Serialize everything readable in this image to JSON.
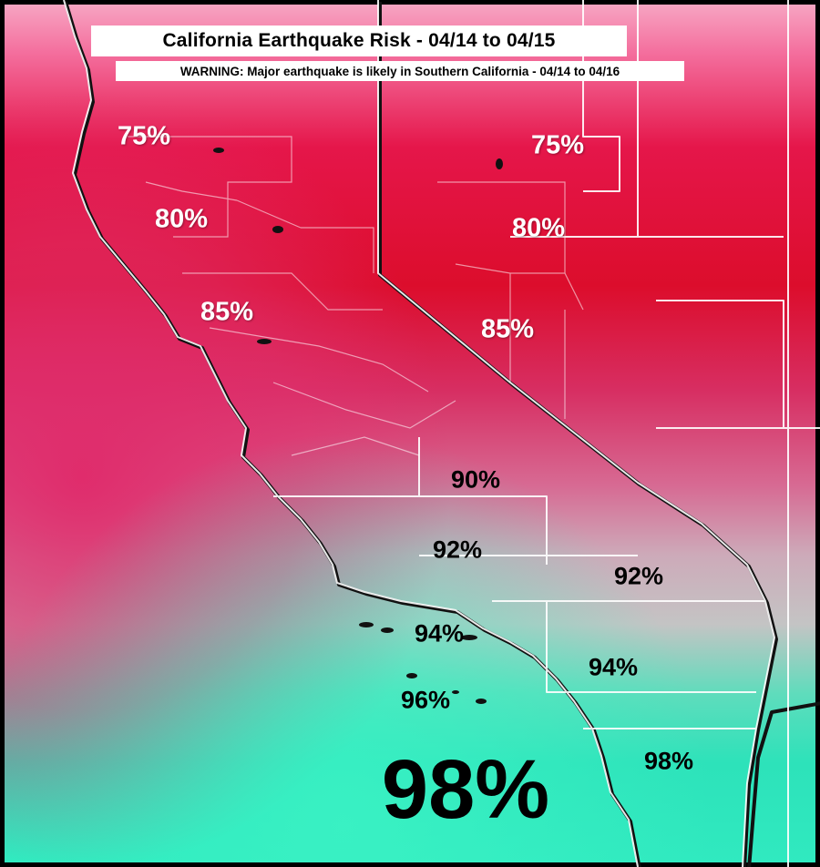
{
  "map": {
    "title": "California Earthquake Risk - 04/14 to 04/15",
    "warning": "WARNING: Major earthquake is likely in Southern California - 04/14 to 04/16",
    "colors": {
      "high_pink": "#f46f9e",
      "red": "#e0102a",
      "magenta": "#d8306a",
      "gray": "#c6b8be",
      "teal": "#2de2ba",
      "teal_light": "#46f0c8",
      "boundary_shadow": "#111111",
      "boundary_highlight": "#ffffff"
    },
    "risk_labels": [
      {
        "id": "nw-75",
        "text": "75%"
      },
      {
        "id": "ne-75",
        "text": "75%"
      },
      {
        "id": "nw-80",
        "text": "80%"
      },
      {
        "id": "ne-80",
        "text": "80%"
      },
      {
        "id": "nw-85",
        "text": "85%"
      },
      {
        "id": "ne-85",
        "text": "85%"
      },
      {
        "id": "c-90",
        "text": "90%"
      },
      {
        "id": "c-92",
        "text": "92%"
      },
      {
        "id": "e-92",
        "text": "92%"
      },
      {
        "id": "c-94",
        "text": "94%"
      },
      {
        "id": "e-94",
        "text": "94%"
      },
      {
        "id": "c-96",
        "text": "96%"
      },
      {
        "id": "se-98",
        "text": "98%"
      },
      {
        "id": "main-98",
        "text": "98%"
      }
    ]
  }
}
